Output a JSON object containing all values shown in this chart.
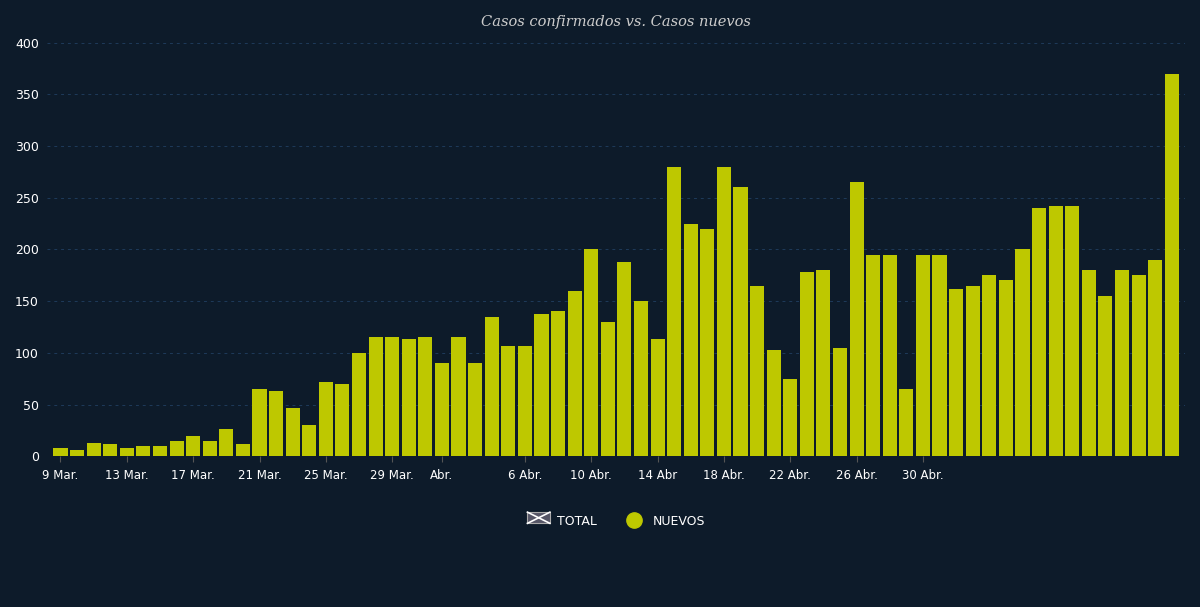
{
  "title": "Casos confirmados vs. Casos nuevos",
  "background_color": "#0d1b2a",
  "bar_color": "#bec800",
  "grid_color": "#1a2d45",
  "text_color": "#ffffff",
  "title_color": "#cccccc",
  "ylim": [
    0,
    400
  ],
  "yticks": [
    0,
    50,
    100,
    150,
    200,
    250,
    300,
    350,
    400
  ],
  "values": [
    8,
    6,
    13,
    12,
    8,
    10,
    10,
    15,
    20,
    15,
    26,
    12,
    65,
    63,
    47,
    30,
    72,
    70,
    100,
    115,
    115,
    113,
    115,
    90,
    115,
    90,
    135,
    107,
    107,
    138,
    140,
    160,
    200,
    130,
    188,
    150,
    113,
    280,
    225,
    220,
    280,
    260,
    165,
    103,
    75,
    178,
    180,
    105,
    265,
    195,
    195,
    65,
    195,
    195,
    162,
    165,
    175,
    170,
    200,
    240,
    242,
    242,
    180,
    155,
    180,
    175,
    190,
    370
  ],
  "legend_total_label": "TOTAL",
  "legend_nuevos_label": "NUEVOS"
}
